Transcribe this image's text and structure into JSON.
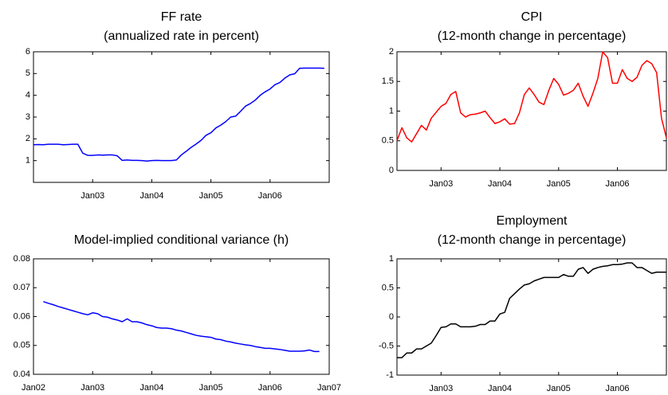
{
  "chart_data": [
    {
      "type": "line",
      "title": "FF rate",
      "subtitle": "(annualized rate in percent)",
      "color": "#0000ff",
      "x": [
        0,
        1,
        2,
        3,
        4,
        5,
        6,
        7,
        8,
        9,
        10,
        11,
        12,
        13,
        14,
        15,
        16,
        17,
        18,
        19,
        20,
        21,
        22,
        23,
        24,
        25,
        26,
        27,
        28,
        29,
        30,
        31,
        32,
        33,
        34,
        35,
        36,
        37,
        38,
        39,
        40,
        41,
        42,
        43,
        44,
        45,
        46,
        47,
        48,
        49,
        50,
        51,
        52,
        53,
        54,
        55,
        56,
        57,
        58,
        59
      ],
      "values": [
        1.73,
        1.74,
        1.73,
        1.75,
        1.75,
        1.75,
        1.73,
        1.74,
        1.75,
        1.75,
        1.34,
        1.24,
        1.24,
        1.26,
        1.25,
        1.26,
        1.26,
        1.22,
        1.01,
        1.03,
        1.01,
        1.01,
        1.0,
        0.98,
        1.0,
        1.01,
        1.0,
        1.0,
        1.0,
        1.03,
        1.26,
        1.43,
        1.61,
        1.76,
        1.93,
        2.16,
        2.28,
        2.5,
        2.63,
        2.79,
        3.0,
        3.04,
        3.26,
        3.5,
        3.62,
        3.78,
        4.0,
        4.16,
        4.29,
        4.49,
        4.59,
        4.79,
        4.94,
        4.99,
        5.24,
        5.25,
        5.25,
        5.25,
        5.25,
        5.24
      ],
      "xlim": [
        0,
        60
      ],
      "xticks": [
        {
          "value": 12,
          "label": "Jan03"
        },
        {
          "value": 24,
          "label": "Jan04"
        },
        {
          "value": 36,
          "label": "Jan05"
        },
        {
          "value": 48,
          "label": "Jan06"
        }
      ],
      "ylim": [
        0,
        6
      ],
      "yticks": [
        1,
        2,
        3,
        4,
        5,
        6
      ]
    },
    {
      "type": "line",
      "title": "CPI",
      "subtitle": "(12-month change in percentage)",
      "color": "#ff0000",
      "x": [
        3,
        4,
        5,
        6,
        7,
        8,
        9,
        10,
        11,
        12,
        13,
        14,
        15,
        16,
        17,
        18,
        19,
        20,
        21,
        22,
        23,
        24,
        25,
        26,
        27,
        28,
        29,
        30,
        31,
        32,
        33,
        34,
        35,
        36,
        37,
        38,
        39,
        40,
        41,
        42,
        43,
        44,
        45,
        46,
        47,
        48,
        49,
        50,
        51,
        52,
        53,
        54,
        55,
        56,
        57,
        58
      ],
      "values": [
        0.5,
        0.72,
        0.55,
        0.48,
        0.62,
        0.76,
        0.68,
        0.88,
        0.98,
        1.08,
        1.13,
        1.28,
        1.33,
        0.97,
        0.9,
        0.94,
        0.95,
        0.97,
        1.0,
        0.89,
        0.79,
        0.82,
        0.87,
        0.78,
        0.79,
        0.97,
        1.28,
        1.39,
        1.28,
        1.15,
        1.11,
        1.35,
        1.55,
        1.45,
        1.27,
        1.3,
        1.35,
        1.47,
        1.25,
        1.08,
        1.3,
        1.55,
        2.0,
        1.9,
        1.47,
        1.47,
        1.7,
        1.55,
        1.5,
        1.57,
        1.77,
        1.85,
        1.8,
        1.65,
        0.88,
        0.55
      ],
      "xlim": [
        3,
        58
      ],
      "xticks": [
        {
          "value": 12,
          "label": "Jan03"
        },
        {
          "value": 24,
          "label": "Jan04"
        },
        {
          "value": 36,
          "label": "Jan05"
        },
        {
          "value": 48,
          "label": "Jan06"
        }
      ],
      "ylim": [
        0,
        2
      ],
      "yticks": [
        0,
        0.5,
        1,
        1.5,
        2
      ]
    },
    {
      "type": "line",
      "title": "Model-implied conditional variance (h)",
      "color": "#0000ff",
      "x": [
        2,
        3,
        4,
        5,
        6,
        7,
        8,
        9,
        10,
        11,
        12,
        13,
        14,
        15,
        16,
        17,
        18,
        19,
        20,
        21,
        22,
        23,
        24,
        25,
        26,
        27,
        28,
        29,
        30,
        31,
        32,
        33,
        34,
        35,
        36,
        37,
        38,
        39,
        40,
        41,
        42,
        43,
        44,
        45,
        46,
        47,
        48,
        49,
        50,
        51,
        52,
        53,
        54,
        55,
        56,
        57,
        58
      ],
      "values": [
        0.0652,
        0.0646,
        0.0641,
        0.0635,
        0.063,
        0.0625,
        0.062,
        0.0615,
        0.061,
        0.0606,
        0.0613,
        0.061,
        0.06,
        0.0598,
        0.0592,
        0.0588,
        0.0582,
        0.0592,
        0.0582,
        0.0582,
        0.0578,
        0.0572,
        0.0568,
        0.0562,
        0.056,
        0.056,
        0.0558,
        0.0553,
        0.055,
        0.0545,
        0.054,
        0.0535,
        0.0532,
        0.053,
        0.0528,
        0.0522,
        0.052,
        0.0515,
        0.0512,
        0.0508,
        0.0505,
        0.0502,
        0.05,
        0.0496,
        0.0493,
        0.049,
        0.049,
        0.0488,
        0.0486,
        0.0483,
        0.048,
        0.048,
        0.048,
        0.0481,
        0.0484,
        0.0479,
        0.0479
      ],
      "xlim": [
        0,
        60
      ],
      "xticks": [
        {
          "value": 0,
          "label": "Jan02"
        },
        {
          "value": 12,
          "label": "Jan03"
        },
        {
          "value": 24,
          "label": "Jan04"
        },
        {
          "value": 36,
          "label": "Jan05"
        },
        {
          "value": 48,
          "label": "Jan06"
        },
        {
          "value": 60,
          "label": "Jan07"
        }
      ],
      "ylim": [
        0.04,
        0.08
      ],
      "yticks": [
        0.04,
        0.05,
        0.06,
        0.07,
        0.08
      ]
    },
    {
      "type": "line",
      "title": "Employment",
      "subtitle": "(12-month change in percentage)",
      "color": "#000000",
      "x": [
        3,
        4,
        5,
        6,
        7,
        8,
        9,
        10,
        11,
        12,
        13,
        14,
        15,
        16,
        17,
        18,
        19,
        20,
        21,
        22,
        23,
        24,
        25,
        26,
        27,
        28,
        29,
        30,
        31,
        32,
        33,
        34,
        35,
        36,
        37,
        38,
        39,
        40,
        41,
        42,
        43,
        44,
        45,
        46,
        47,
        48,
        49,
        50,
        51,
        52,
        53,
        54,
        55,
        56,
        57,
        58
      ],
      "values": [
        -0.7,
        -0.7,
        -0.62,
        -0.62,
        -0.55,
        -0.55,
        -0.5,
        -0.45,
        -0.32,
        -0.18,
        -0.17,
        -0.12,
        -0.12,
        -0.17,
        -0.17,
        -0.17,
        -0.16,
        -0.13,
        -0.13,
        -0.07,
        -0.07,
        0.05,
        0.08,
        0.32,
        0.4,
        0.48,
        0.55,
        0.57,
        0.62,
        0.65,
        0.68,
        0.68,
        0.68,
        0.68,
        0.73,
        0.7,
        0.7,
        0.82,
        0.85,
        0.75,
        0.82,
        0.85,
        0.87,
        0.88,
        0.9,
        0.9,
        0.91,
        0.93,
        0.93,
        0.85,
        0.85,
        0.8,
        0.75,
        0.77,
        0.77,
        0.77
      ],
      "xlim": [
        3,
        58
      ],
      "xticks": [
        {
          "value": 12,
          "label": "Jan03"
        },
        {
          "value": 24,
          "label": "Jan04"
        },
        {
          "value": 36,
          "label": "Jan05"
        },
        {
          "value": 48,
          "label": "Jan06"
        }
      ],
      "ylim": [
        -1,
        1
      ],
      "yticks": [
        -1,
        -0.5,
        0,
        0.5,
        1
      ]
    }
  ]
}
